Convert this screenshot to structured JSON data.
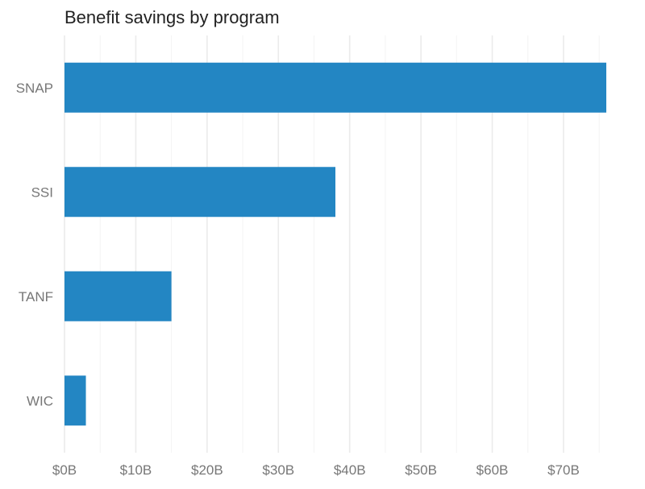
{
  "chart_data": {
    "type": "bar",
    "orientation": "horizontal",
    "title": "Benefit savings by program",
    "xlabel": "",
    "ylabel": "",
    "categories": [
      "SNAP",
      "SSI",
      "TANF",
      "WIC"
    ],
    "values": [
      76,
      38,
      15,
      3
    ],
    "unit": "$B",
    "xlim": [
      0,
      76
    ],
    "x_ticks": [
      0,
      10,
      20,
      30,
      40,
      50,
      60,
      70
    ],
    "x_tick_labels": [
      "$0B",
      "$10B",
      "$20B",
      "$30B",
      "$40B",
      "$50B",
      "$60B",
      "$70B"
    ],
    "grid": "vertical",
    "legend": "none",
    "bar_color": "#2386c3",
    "grid_color": "#ebebeb"
  }
}
